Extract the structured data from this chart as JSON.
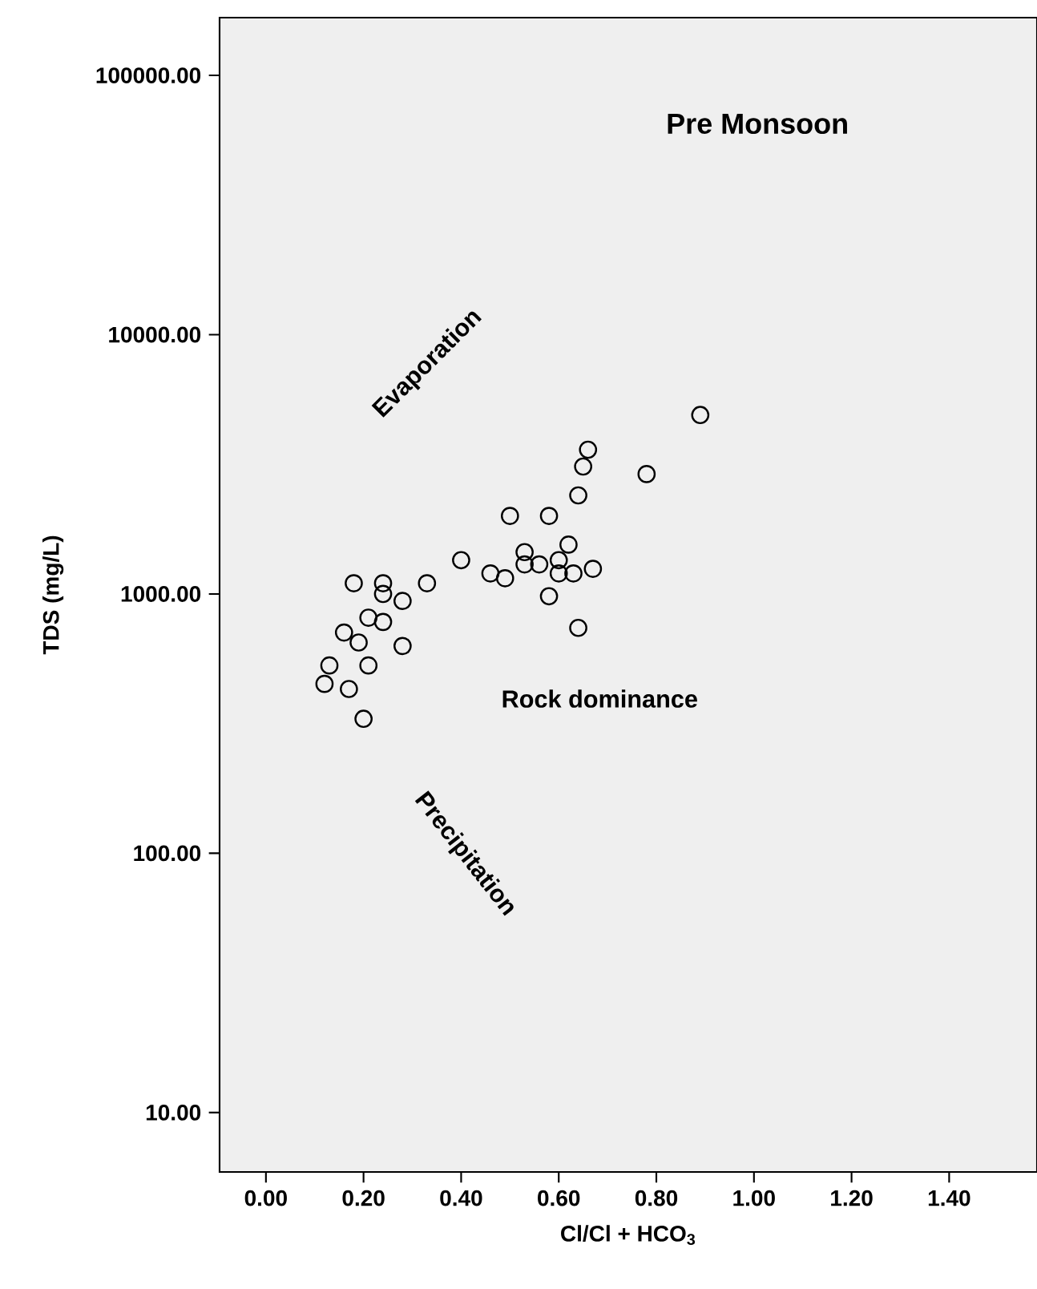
{
  "chart_data": {
    "type": "scatter",
    "title": "Pre Monsoon",
    "xlabel": "Cl/Cl + HCO$_{3}$",
    "ylabel": "TDS (mg/L)",
    "annotations": [
      "Evaporation",
      "Rock dominance",
      "Precipitation"
    ],
    "log": "y",
    "marker": "circle",
    "xlim": [
      -0.095,
      1.58
    ],
    "ylim": [
      5.9,
      167000
    ],
    "xticks": [
      {
        "value": 0,
        "label": "0.00"
      },
      {
        "value": 0.2,
        "label": "0.20"
      },
      {
        "value": 0.4,
        "label": "0.40"
      },
      {
        "value": 0.6,
        "label": "0.60"
      },
      {
        "value": 0.8,
        "label": "0.80"
      },
      {
        "value": 1.0,
        "label": "1.00"
      },
      {
        "value": 1.2,
        "label": "1.20"
      },
      {
        "value": 1.4,
        "label": "1.40"
      }
    ],
    "yticks": [
      {
        "value": 10,
        "label": "10.00"
      },
      {
        "value": 100,
        "label": "100.00"
      },
      {
        "value": 1000,
        "label": "1000.00"
      },
      {
        "value": 10000,
        "label": "10000.00"
      },
      {
        "value": 100000,
        "label": "100000.00"
      }
    ],
    "series": [
      {
        "color": "#000000",
        "x": [
          0.89,
          0.66,
          0.65,
          0.78,
          0.64,
          0.5,
          0.58,
          0.4,
          0.53,
          0.62,
          0.46,
          0.49,
          0.53,
          0.56,
          0.6,
          0.6,
          0.63,
          0.67,
          0.58,
          0.64,
          0.18,
          0.24,
          0.24,
          0.28,
          0.33,
          0.21,
          0.24,
          0.16,
          0.19,
          0.28,
          0.13,
          0.21,
          0.12,
          0.17,
          0.2
        ],
        "values": [
          4900,
          3600,
          3100,
          2900,
          2400,
          2000,
          2000,
          1350,
          1450,
          1550,
          1200,
          1150,
          1300,
          1300,
          1350,
          1200,
          1200,
          1250,
          980,
          740,
          1100,
          1100,
          1000,
          940,
          1100,
          810,
          780,
          710,
          650,
          630,
          530,
          530,
          450,
          430,
          330
        ]
      }
    ]
  }
}
